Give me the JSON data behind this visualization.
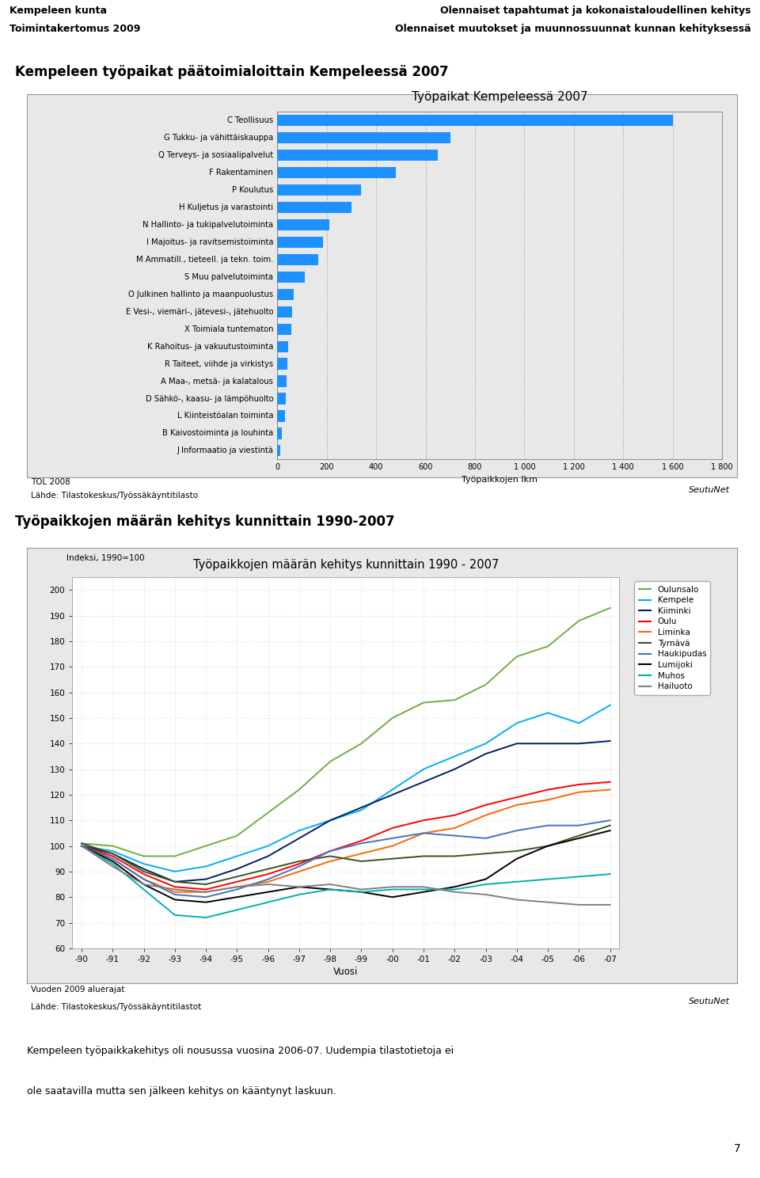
{
  "header_left_line1": "Kempeleen kunta",
  "header_left_line2": "Toimintakertomus 2009",
  "header_right_line1": "Olennaiset tapahtumat ja kokonaistaloudellinen kehitys",
  "header_right_line2": "Olennaiset muutokset ja muunnossuunnat kunnan kehityksessä",
  "section1_title": "Kempeleen työpaikat päätoimialoittain Kempeleessä 2007",
  "bar_chart_title": "Työpaikat Kempeleessä 2007",
  "bar_xlabel": "Työpaikkojen lkm",
  "bar_categories": [
    "C Teollisuus",
    "G Tukku- ja vähittäiskauppa",
    "Q Terveys- ja sosiaalipalvelut",
    "F Rakentaminen",
    "P Koulutus",
    "H Kuljetus ja varastointi",
    "N Hallinto- ja tukipalvelutoiminta",
    "I Majoitus- ja ravitsemistoiminta",
    "M Ammatill., tieteell. ja tekn. toim.",
    "S Muu palvelutoiminta",
    "O Julkinen hallinto ja maanpuolustus",
    "E Vesi-, viemäri-, jätevesi-, jätehuolto",
    "X Toimiala tuntematon",
    "K Rahoitus- ja vakuutustoiminta",
    "R Taiteet, viihde ja virkistys",
    "A Maa-, metsä- ja kalatalous",
    "D Sähkö-, kaasu- ja lämpöhuolto",
    "L Kiinteistöalan toiminta",
    "B Kaivostoiminta ja louhinta",
    "J Informaatio ja viestintä"
  ],
  "bar_values": [
    1600,
    700,
    650,
    480,
    340,
    300,
    210,
    185,
    165,
    110,
    65,
    60,
    55,
    45,
    40,
    38,
    35,
    30,
    18,
    12
  ],
  "bar_color": "#1E90FF",
  "bar_xlim": [
    0,
    1800
  ],
  "bar_xticks": [
    0,
    200,
    400,
    600,
    800,
    1000,
    1200,
    1400,
    1600,
    1800
  ],
  "bar_note1": "TOL 2008",
  "bar_note2": "Lähde: Tilastokeskus/Työssäkäyntitilasto",
  "bar_seutunet": "SeutuNet",
  "section2_title": "Työpaikkojen määrän kehitys kunnittain 1990-2007",
  "line_chart_title": "Työpaikkojen määrän kehitys kunnittain 1990 - 2007",
  "line_ylabel_note": "Indeksi, 1990=100",
  "line_xlabel": "Vuosi",
  "line_years": [
    "-90",
    "-91",
    "-92",
    "-93",
    "-94",
    "-95",
    "-96",
    "-97",
    "-98",
    "-99",
    "-00",
    "-01",
    "-02",
    "-03",
    "-04",
    "-05",
    "-06",
    "-07"
  ],
  "line_ylim": [
    60,
    205
  ],
  "line_yticks": [
    60,
    70,
    80,
    90,
    100,
    110,
    120,
    130,
    140,
    150,
    160,
    170,
    180,
    190,
    200
  ],
  "line_note1": "Vuoden 2009 aluerajat",
  "line_note2": "Lähde: Tilastokeskus/Työssäkäyntitilastot",
  "line_seutunet": "SeutuNet",
  "series": {
    "Oulunsalo": {
      "color": "#70AD47",
      "values": [
        101,
        100,
        96,
        96,
        100,
        104,
        113,
        122,
        133,
        140,
        150,
        156,
        157,
        163,
        174,
        178,
        188,
        193
      ]
    },
    "Kempele": {
      "color": "#00B0F0",
      "values": [
        100,
        98,
        93,
        90,
        92,
        96,
        100,
        106,
        110,
        114,
        122,
        130,
        135,
        140,
        148,
        152,
        148,
        155
      ]
    },
    "Kiiminki": {
      "color": "#002060",
      "values": [
        100,
        97,
        91,
        86,
        87,
        91,
        96,
        103,
        110,
        115,
        120,
        125,
        130,
        136,
        140,
        140,
        140,
        141
      ]
    },
    "Oulu": {
      "color": "#FF0000",
      "values": [
        100,
        96,
        89,
        84,
        83,
        86,
        89,
        93,
        98,
        102,
        107,
        110,
        112,
        116,
        119,
        122,
        124,
        125
      ]
    },
    "Liminka": {
      "color": "#FF6600",
      "values": [
        100,
        95,
        87,
        82,
        82,
        84,
        86,
        90,
        94,
        97,
        100,
        105,
        107,
        112,
        116,
        118,
        121,
        122
      ]
    },
    "Tyrnävä": {
      "color": "#375623",
      "values": [
        101,
        97,
        90,
        86,
        85,
        88,
        91,
        94,
        96,
        94,
        95,
        96,
        96,
        97,
        98,
        100,
        104,
        108
      ]
    },
    "Haukipudas": {
      "color": "#4472C4",
      "values": [
        100,
        95,
        87,
        81,
        80,
        83,
        87,
        92,
        98,
        101,
        103,
        105,
        104,
        103,
        106,
        108,
        108,
        110
      ]
    },
    "Lumijoki": {
      "color": "#000000",
      "values": [
        100,
        94,
        85,
        79,
        78,
        80,
        82,
        84,
        83,
        82,
        80,
        82,
        84,
        87,
        95,
        100,
        103,
        106
      ]
    },
    "Muhos": {
      "color": "#00B0B0",
      "values": [
        100,
        93,
        83,
        73,
        72,
        75,
        78,
        81,
        83,
        82,
        83,
        83,
        83,
        85,
        86,
        87,
        88,
        89
      ]
    },
    "Hailuoto": {
      "color": "#808080",
      "values": [
        100,
        92,
        85,
        83,
        82,
        84,
        85,
        84,
        85,
        83,
        84,
        84,
        82,
        81,
        79,
        78,
        77,
        77
      ]
    }
  },
  "footer_text": "Kempeleen työpaikkakehitys oli nousussa vuosina 2006-07. Uudempia tilastotietoja ei ole saatavilla mutta sen jälkeen kehitys on kääntynyt laskuun.",
  "page_number": "7"
}
